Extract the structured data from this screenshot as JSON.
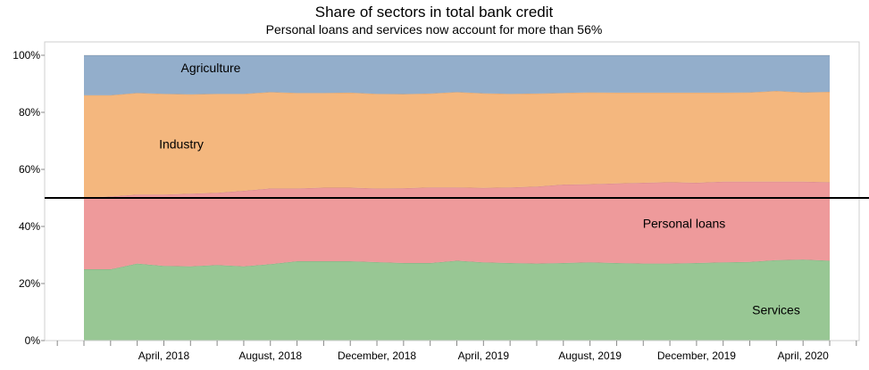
{
  "chart_data": {
    "type": "area",
    "stacked": true,
    "title": "Share of sectors in total bank credit",
    "subtitle": "Personal loans and services now account for more than 56%",
    "xlabel": "",
    "ylabel": "",
    "ylim": [
      0,
      100
    ],
    "y_ticks": [
      "0%",
      "20%",
      "40%",
      "60%",
      "80%",
      "100%"
    ],
    "x_ticks": [
      "April, 2018",
      "August, 2018",
      "December, 2018",
      "April, 2019",
      "August, 2019",
      "December, 2019",
      "April, 2020"
    ],
    "x": [
      "2018-01",
      "2018-02",
      "2018-03",
      "2018-04",
      "2018-05",
      "2018-06",
      "2018-07",
      "2018-08",
      "2018-09",
      "2018-10",
      "2018-11",
      "2018-12",
      "2019-01",
      "2019-02",
      "2019-03",
      "2019-04",
      "2019-05",
      "2019-06",
      "2019-07",
      "2019-08",
      "2019-09",
      "2019-10",
      "2019-11",
      "2019-12",
      "2020-01",
      "2020-02",
      "2020-03",
      "2020-04",
      "2020-05"
    ],
    "reference_line": 50,
    "series": [
      {
        "name": "Services",
        "color": "#98c794",
        "values": [
          25,
          25,
          27,
          26.2,
          26,
          26.5,
          26,
          26.8,
          27.8,
          27.8,
          27.8,
          27.5,
          27.2,
          27.2,
          28,
          27.4,
          27.2,
          27,
          27.2,
          27.4,
          27.2,
          27,
          27,
          27.2,
          27.4,
          27.6,
          28.2,
          28.4,
          28
        ]
      },
      {
        "name": "Personal loans",
        "color": "#ee9a9b",
        "values": [
          25,
          25.5,
          24.2,
          25,
          25.5,
          25.3,
          26.5,
          26.5,
          25.5,
          25.8,
          25.8,
          25.8,
          26.2,
          26.5,
          25.7,
          26.1,
          26.5,
          27,
          27.5,
          27.4,
          27.9,
          28.3,
          28.5,
          28.1,
          28.3,
          28.1,
          27.5,
          27.3,
          27.5
        ]
      },
      {
        "name": "Industry",
        "color": "#f4b77e",
        "values": [
          36,
          35.5,
          35.6,
          35.3,
          34.8,
          34.7,
          34,
          33.8,
          33.5,
          33.2,
          33.3,
          33.2,
          33,
          32.9,
          33.4,
          33.2,
          32.8,
          32.6,
          32.1,
          32.2,
          31.8,
          31.6,
          31.4,
          31.6,
          31.2,
          31.3,
          31.8,
          31.3,
          31.7
        ]
      },
      {
        "name": "Agriculture",
        "color": "#93aecb",
        "values": [
          14,
          14,
          13.2,
          13.5,
          13.7,
          13.5,
          13.5,
          12.9,
          13.2,
          13.2,
          13.1,
          13.5,
          13.6,
          13.4,
          12.9,
          13.3,
          13.5,
          13.4,
          13.2,
          13,
          13.1,
          13.1,
          13.1,
          13.1,
          13.1,
          13,
          12.5,
          13,
          12.8
        ]
      }
    ]
  }
}
